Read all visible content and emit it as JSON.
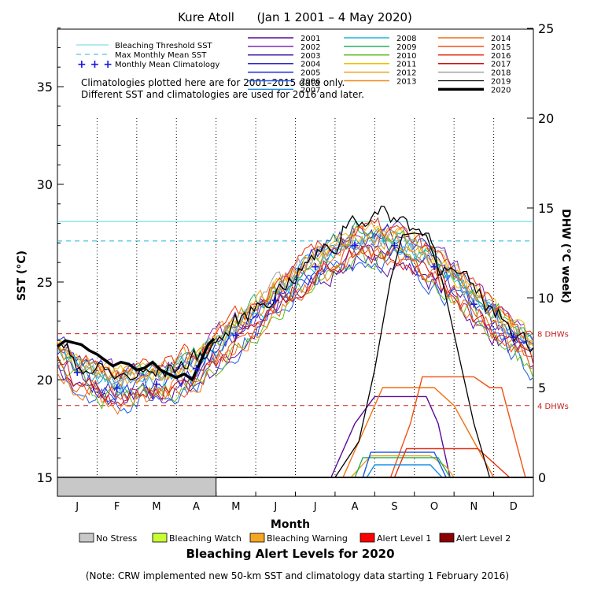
{
  "chart_data": {
    "type": "line",
    "title": "Kure Atoll      (Jan 1 2001 – 4 May 2020)",
    "xlabel": "Month",
    "ylabel_left": "SST (°C)",
    "ylabel_right": "DHW (°C week)",
    "ylim_left": [
      15,
      39
    ],
    "ylim_right": [
      0,
      25
    ],
    "left_ticks": [
      15,
      20,
      25,
      30,
      35
    ],
    "right_ticks": [
      0,
      5,
      10,
      15,
      20,
      25
    ],
    "months": [
      "J",
      "F",
      "M",
      "A",
      "M",
      "J",
      "J",
      "A",
      "S",
      "O",
      "N",
      "D"
    ],
    "reference_lines": {
      "bleaching_threshold_sst": 28.1,
      "max_monthly_mean_sst": 27.1,
      "dhw_8_label": "8 DHWs",
      "dhw_8": 8,
      "dhw_4_label": "4 DHWs",
      "dhw_4": 4
    },
    "legend_lines": {
      "threshold": "Bleaching Threshold SST",
      "mmm": "Max Monthly Mean SST",
      "climatology": "Monthly Mean Climatology"
    },
    "notes": [
      "Climatologies plotted here are for 2001–2015 data only.",
      "Different SST and climatologies are used for 2016 and later."
    ],
    "climatology_values": [
      20.4,
      19.6,
      19.8,
      20.6,
      22.3,
      24.1,
      25.8,
      26.9,
      26.9,
      25.8,
      23.9,
      22.2
    ],
    "years": [
      {
        "name": "2001",
        "color": "#5a0a9a"
      },
      {
        "name": "2002",
        "color": "#7b2ab8"
      },
      {
        "name": "2003",
        "color": "#4a1aa8"
      },
      {
        "name": "2004",
        "color": "#2a2ac8"
      },
      {
        "name": "2005",
        "color": "#1a2ae0"
      },
      {
        "name": "2006",
        "color": "#1a5ae8"
      },
      {
        "name": "2007",
        "color": "#1a90e8"
      },
      {
        "name": "2008",
        "color": "#20b8d8"
      },
      {
        "name": "2009",
        "color": "#20b060"
      },
      {
        "name": "2010",
        "color": "#60c020"
      },
      {
        "name": "2011",
        "color": "#f0c000"
      },
      {
        "name": "2012",
        "color": "#f0a020"
      },
      {
        "name": "2013",
        "color": "#f08a10"
      },
      {
        "name": "2014",
        "color": "#f07010"
      },
      {
        "name": "2015",
        "color": "#f05010"
      },
      {
        "name": "2016",
        "color": "#e83010"
      },
      {
        "name": "2017",
        "color": "#d01010"
      },
      {
        "name": "2018",
        "color": "#a0a0a0"
      },
      {
        "name": "2019",
        "color": "#000000"
      },
      {
        "name": "2020",
        "color": "#000000"
      }
    ],
    "series_2020_sst": [
      {
        "m": 0.0,
        "v": 21.7
      },
      {
        "m": 0.2,
        "v": 22.0
      },
      {
        "m": 0.4,
        "v": 21.9
      },
      {
        "m": 0.6,
        "v": 21.8
      },
      {
        "m": 0.8,
        "v": 21.5
      },
      {
        "m": 1.0,
        "v": 21.3
      },
      {
        "m": 1.2,
        "v": 21.0
      },
      {
        "m": 1.4,
        "v": 20.7
      },
      {
        "m": 1.6,
        "v": 20.9
      },
      {
        "m": 1.8,
        "v": 20.8
      },
      {
        "m": 2.0,
        "v": 20.5
      },
      {
        "m": 2.2,
        "v": 20.6
      },
      {
        "m": 2.4,
        "v": 20.9
      },
      {
        "m": 2.6,
        "v": 20.5
      },
      {
        "m": 2.8,
        "v": 20.3
      },
      {
        "m": 3.0,
        "v": 20.1
      },
      {
        "m": 3.2,
        "v": 20.3
      },
      {
        "m": 3.4,
        "v": 20.0
      },
      {
        "m": 3.6,
        "v": 20.9
      },
      {
        "m": 3.8,
        "v": 21.8
      },
      {
        "m": 3.95,
        "v": 22.1
      }
    ],
    "series_2019_dhw": [
      {
        "m": 7.0,
        "v": 0
      },
      {
        "m": 7.6,
        "v": 2
      },
      {
        "m": 8.0,
        "v": 6
      },
      {
        "m": 8.4,
        "v": 11
      },
      {
        "m": 8.7,
        "v": 13.5
      },
      {
        "m": 9.0,
        "v": 13.6
      },
      {
        "m": 9.3,
        "v": 13.5
      },
      {
        "m": 9.7,
        "v": 11
      },
      {
        "m": 10.1,
        "v": 7
      },
      {
        "m": 10.5,
        "v": 3
      },
      {
        "m": 10.9,
        "v": 0
      }
    ],
    "dhw_other_curves": [
      {
        "color": "#5a0a9a",
        "pts": [
          [
            6.9,
            0
          ],
          [
            7.5,
            3
          ],
          [
            8.0,
            4.5
          ],
          [
            9.3,
            4.5
          ],
          [
            9.6,
            3
          ],
          [
            9.9,
            0
          ]
        ]
      },
      {
        "color": "#f07010",
        "pts": [
          [
            7.2,
            0
          ],
          [
            7.8,
            3
          ],
          [
            8.2,
            5
          ],
          [
            9.5,
            5
          ],
          [
            10.0,
            4
          ],
          [
            10.5,
            2
          ],
          [
            11.0,
            0
          ]
        ]
      },
      {
        "color": "#f05010",
        "pts": [
          [
            8.4,
            0
          ],
          [
            8.9,
            3
          ],
          [
            9.2,
            5.6
          ],
          [
            10.5,
            5.6
          ],
          [
            10.9,
            5.0
          ],
          [
            11.2,
            5.0
          ],
          [
            11.8,
            0
          ]
        ]
      },
      {
        "color": "#f0a020",
        "pts": [
          [
            7.4,
            0
          ],
          [
            7.9,
            1.2
          ],
          [
            9.4,
            1.2
          ],
          [
            9.8,
            0.6
          ],
          [
            10.0,
            0
          ]
        ]
      },
      {
        "color": "#20b060",
        "pts": [
          [
            7.5,
            0
          ],
          [
            7.7,
            1.1
          ],
          [
            9.6,
            1.1
          ],
          [
            9.9,
            0
          ]
        ]
      },
      {
        "color": "#1a5ae8",
        "pts": [
          [
            7.7,
            0
          ],
          [
            7.9,
            1.4
          ],
          [
            9.5,
            1.4
          ],
          [
            9.8,
            0
          ]
        ]
      },
      {
        "color": "#e83010",
        "pts": [
          [
            8.5,
            0
          ],
          [
            8.8,
            1.6
          ],
          [
            10.6,
            1.6
          ],
          [
            11.4,
            0
          ]
        ]
      },
      {
        "color": "#1a90e8",
        "pts": [
          [
            7.8,
            0
          ],
          [
            8.0,
            0.7
          ],
          [
            9.4,
            0.7
          ],
          [
            9.7,
            0
          ]
        ]
      }
    ]
  },
  "alert_legend": {
    "title": "Bleaching Alert Levels for 2020",
    "items": [
      {
        "label": "No Stress",
        "color": "#c8c8c8"
      },
      {
        "label": "Bleaching Watch",
        "color": "#c8ff32"
      },
      {
        "label": "Bleaching Warning",
        "color": "#f5a623"
      },
      {
        "label": "Alert Level 1",
        "color": "#ff0000"
      },
      {
        "label": "Alert Level 2",
        "color": "#8b0000"
      }
    ],
    "no_stress_until_month": 4.0
  },
  "footnote": "(Note: CRW implemented new 50-km SST and climatology data starting 1 February 2016)"
}
